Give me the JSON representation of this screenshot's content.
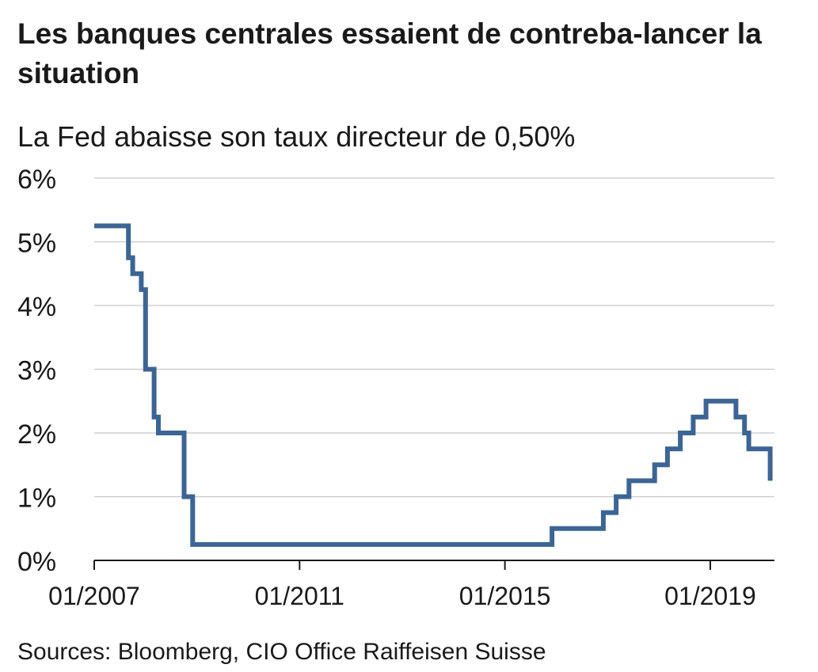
{
  "title": "Les banques centrales essaient de contreba-lancer la situation",
  "subtitle": "La Fed abaisse son taux directeur de 0,50%",
  "source": "Sources: Bloomberg, CIO Office Raiffeisen Suisse",
  "colors": {
    "line": "#3C6595",
    "grid": "#c8c8c8",
    "axis": "#1a1a1a"
  },
  "chart_data": {
    "type": "line",
    "title": "Les banques centrales essaient de contreba-lancer la situation",
    "subtitle": "La Fed abaisse son taux directeur de 0,50%",
    "ylabel": "",
    "xlabel": "",
    "ylim": [
      0,
      6
    ],
    "y_ticks": [
      0,
      1,
      2,
      3,
      4,
      5,
      6
    ],
    "y_tick_labels": [
      "0%",
      "1%",
      "2%",
      "3%",
      "4%",
      "5%",
      "6%"
    ],
    "x_range": [
      "2007-01",
      "2020-04"
    ],
    "x_ticks": [
      "2007-01",
      "2011-01",
      "2015-01",
      "2019-01"
    ],
    "x_tick_labels": [
      "01/2007",
      "01/2011",
      "01/2015",
      "01/2019"
    ],
    "grid": true,
    "series": [
      {
        "step": true,
        "x": [
          "2007-01",
          "2007-09",
          "2007-10",
          "2007-12",
          "2008-01",
          "2008-02",
          "2008-03",
          "2008-04",
          "2008-10",
          "2008-10",
          "2008-12",
          "2015-12",
          "2016-12",
          "2017-03",
          "2017-06",
          "2017-12",
          "2018-03",
          "2018-06",
          "2018-09",
          "2018-12",
          "2019-07",
          "2019-09",
          "2019-10",
          "2020-03",
          "2020-03"
        ],
        "values": [
          5.25,
          4.75,
          4.5,
          4.25,
          3.0,
          3.0,
          2.25,
          2.0,
          1.5,
          1.0,
          0.25,
          0.5,
          0.75,
          1.0,
          1.25,
          1.5,
          1.75,
          2.0,
          2.25,
          2.5,
          2.25,
          2.0,
          1.75,
          1.75,
          1.25
        ]
      }
    ]
  }
}
